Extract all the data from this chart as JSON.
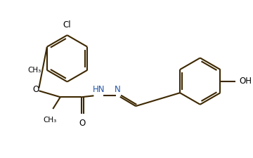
{
  "bg_color": "#ffffff",
  "line_color": "#3d2800",
  "text_color": "#000000",
  "hn_color": "#2255aa",
  "bond_lw": 1.5,
  "font_size": 8.5,
  "figsize": [
    3.6,
    2.25
  ],
  "dpi": 100,
  "xlim": [
    0,
    9
  ],
  "ylim": [
    0,
    5.6
  ]
}
